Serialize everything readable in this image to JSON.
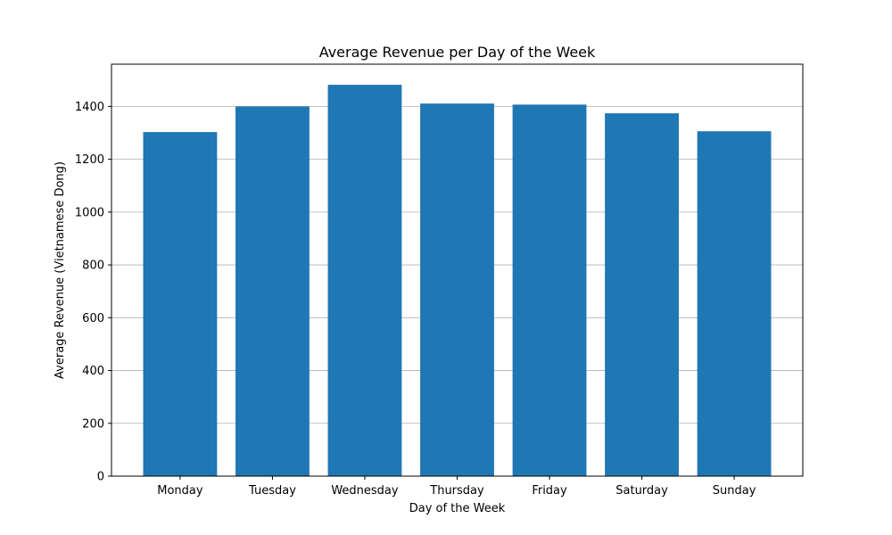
{
  "chart_data": {
    "type": "bar",
    "title": "Average Revenue per Day of the Week",
    "xlabel": "Day of the Week",
    "ylabel": "Average Revenue (Vietnamese Dong)",
    "categories": [
      "Monday",
      "Tuesday",
      "Wednesday",
      "Thursday",
      "Friday",
      "Saturday",
      "Sunday"
    ],
    "values": [
      1303,
      1400,
      1482,
      1411,
      1407,
      1374,
      1306
    ],
    "ylim": [
      0,
      1560
    ],
    "yticks": [
      0,
      200,
      400,
      600,
      800,
      1000,
      1200,
      1400
    ],
    "grid": {
      "y": true,
      "x": false
    },
    "colors": {
      "bar": "#1f77b4",
      "grid": "#b0b0b0",
      "axis": "#000000"
    }
  }
}
